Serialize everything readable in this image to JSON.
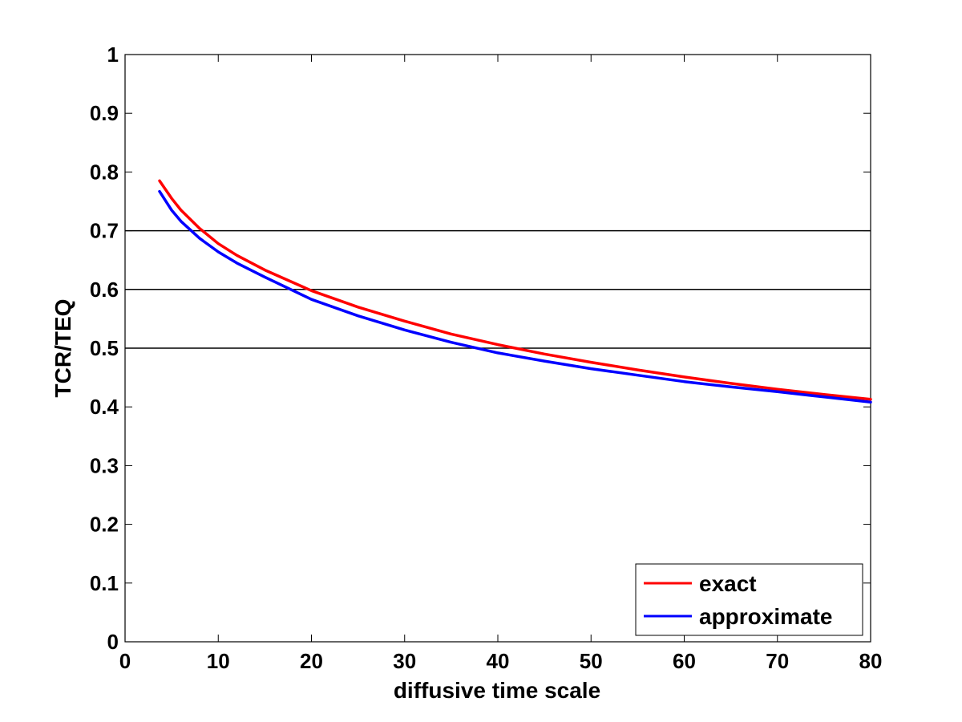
{
  "chart_data": {
    "type": "line",
    "title": "",
    "xlabel": "diffusive time scale",
    "ylabel": "TCR/TEQ",
    "xlim": [
      0,
      80
    ],
    "ylim": [
      0,
      1
    ],
    "xticks": [
      0,
      10,
      20,
      30,
      40,
      50,
      60,
      70,
      80
    ],
    "yticks": [
      0,
      0.1,
      0.2,
      0.3,
      0.4,
      0.5,
      0.6,
      0.7,
      0.8,
      0.9,
      1
    ],
    "xtick_labels": [
      "0",
      "10",
      "20",
      "30",
      "40",
      "50",
      "60",
      "70",
      "80"
    ],
    "ytick_labels": [
      "0",
      "0.1",
      "0.2",
      "0.3",
      "0.4",
      "0.5",
      "0.6",
      "0.7",
      "0.8",
      "0.9",
      "1"
    ],
    "grid": false,
    "reference_lines": [
      0.5,
      0.6,
      0.7
    ],
    "legend_position": "bottom-right",
    "series": [
      {
        "name": "exact",
        "color": "#ff0000",
        "x": [
          3.7,
          5,
          6,
          8,
          10,
          12,
          15,
          20,
          25,
          30,
          35,
          40,
          45,
          50,
          55,
          60,
          65,
          70,
          75,
          80
        ],
        "y": [
          0.785,
          0.755,
          0.735,
          0.704,
          0.678,
          0.658,
          0.633,
          0.598,
          0.57,
          0.546,
          0.524,
          0.506,
          0.49,
          0.476,
          0.463,
          0.451,
          0.44,
          0.43,
          0.421,
          0.413
        ]
      },
      {
        "name": "approximate",
        "color": "#0000ff",
        "x": [
          3.7,
          5,
          6,
          8,
          10,
          12,
          15,
          20,
          25,
          30,
          35,
          40,
          45,
          50,
          55,
          60,
          65,
          70,
          75,
          80
        ],
        "y": [
          0.767,
          0.735,
          0.716,
          0.687,
          0.664,
          0.645,
          0.621,
          0.583,
          0.555,
          0.531,
          0.51,
          0.492,
          0.478,
          0.465,
          0.454,
          0.443,
          0.434,
          0.426,
          0.417,
          0.408
        ]
      }
    ]
  }
}
